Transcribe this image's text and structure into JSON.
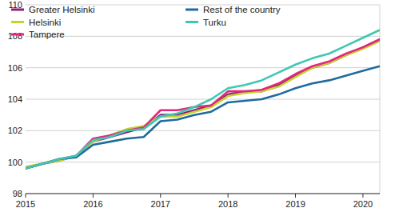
{
  "chart_data": {
    "type": "line",
    "x": [
      2015,
      2015.25,
      2015.5,
      2015.75,
      2016,
      2016.25,
      2016.5,
      2016.75,
      2017,
      2017.25,
      2017.5,
      2017.75,
      2018,
      2018.25,
      2018.5,
      2018.75,
      2019,
      2019.25,
      2019.5,
      2019.75,
      2020,
      2020.25
    ],
    "series": [
      {
        "name": "Greater Helsinki",
        "color": "#8c1d7f",
        "values": [
          99.6,
          99.9,
          100.1,
          100.4,
          101.3,
          101.6,
          101.9,
          102.2,
          103.0,
          103.0,
          103.3,
          103.6,
          104.3,
          104.5,
          104.5,
          104.9,
          105.5,
          106.0,
          106.3,
          106.8,
          107.3,
          107.8
        ]
      },
      {
        "name": "Helsinki",
        "color": "#c5d32e",
        "values": [
          99.7,
          99.9,
          100.1,
          100.4,
          101.3,
          101.7,
          102.1,
          102.3,
          102.9,
          102.9,
          103.2,
          103.5,
          104.2,
          104.4,
          104.5,
          104.8,
          105.4,
          106.0,
          106.3,
          106.8,
          107.2,
          107.7
        ]
      },
      {
        "name": "Tampere",
        "color": "#e2287d",
        "values": [
          99.6,
          99.9,
          100.2,
          100.4,
          101.5,
          101.7,
          102.0,
          102.2,
          103.3,
          103.3,
          103.5,
          103.6,
          104.5,
          104.5,
          104.6,
          105.0,
          105.6,
          106.1,
          106.4,
          106.9,
          107.3,
          107.8
        ]
      },
      {
        "name": "Rest of the country",
        "color": "#1f6b9e",
        "values": [
          99.6,
          99.9,
          100.2,
          100.3,
          101.1,
          101.3,
          101.5,
          101.6,
          102.6,
          102.7,
          103.0,
          103.2,
          103.8,
          103.9,
          104.0,
          104.3,
          104.7,
          105.0,
          105.2,
          105.5,
          105.8,
          106.1
        ]
      },
      {
        "name": "Turku",
        "color": "#3fc7b2",
        "values": [
          99.6,
          99.9,
          100.2,
          100.4,
          101.4,
          101.6,
          102.0,
          102.1,
          102.9,
          103.1,
          103.5,
          104.0,
          104.7,
          104.9,
          105.2,
          105.7,
          106.2,
          106.6,
          106.9,
          107.4,
          107.9,
          108.4
        ]
      }
    ],
    "xlim": [
      2015,
      2020.25
    ],
    "xticks": [
      2015,
      2016,
      2017,
      2018,
      2019,
      2020
    ],
    "ylim": [
      98,
      110
    ],
    "yticks": [
      98,
      100,
      102,
      104,
      106,
      108,
      110
    ],
    "grid": true,
    "legend": "upper left"
  }
}
